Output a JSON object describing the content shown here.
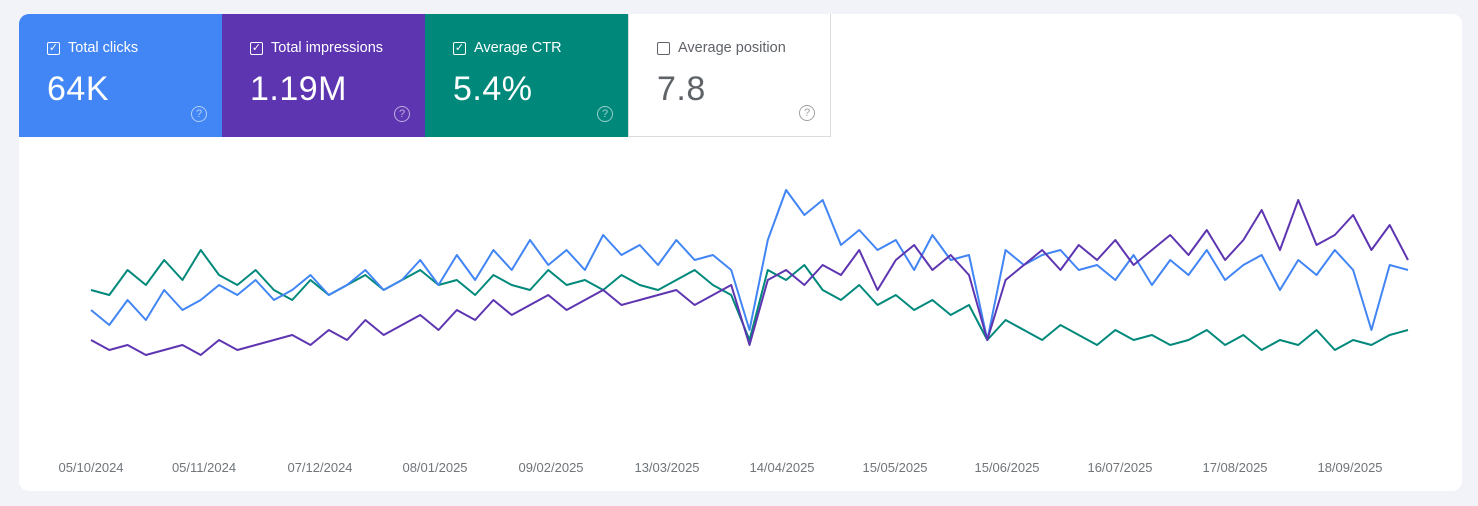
{
  "metrics": [
    {
      "label": "Total clicks",
      "value": "64K",
      "checked": true,
      "color": "#4285f4"
    },
    {
      "label": "Total impressions",
      "value": "1.19M",
      "checked": true,
      "color": "#5e35b1"
    },
    {
      "label": "Average CTR",
      "value": "5.4%",
      "checked": true,
      "color": "#00897b"
    },
    {
      "label": "Average position",
      "value": "7.8",
      "checked": false,
      "color": "#ffffff"
    }
  ],
  "chart_data": {
    "type": "line",
    "title": "",
    "xlabel": "",
    "ylabel": "",
    "x_start": "05/10/2024",
    "x_end": "03/10/2025",
    "x_ticks": [
      "05/10/2024",
      "05/11/2024",
      "07/12/2024",
      "08/01/2025",
      "09/02/2025",
      "13/03/2025",
      "14/04/2025",
      "15/05/2025",
      "15/06/2025",
      "16/07/2025",
      "17/08/2025",
      "18/09/2025"
    ],
    "ylim": [
      0,
      260
    ],
    "grid": false,
    "series": [
      {
        "name": "Total clicks",
        "color": "#4285f4",
        "values": [
          120,
          105,
          130,
          110,
          140,
          120,
          130,
          145,
          135,
          150,
          130,
          140,
          155,
          135,
          145,
          160,
          140,
          150,
          170,
          145,
          175,
          150,
          180,
          160,
          190,
          165,
          180,
          160,
          195,
          175,
          185,
          165,
          190,
          170,
          175,
          160,
          100,
          190,
          240,
          215,
          230,
          185,
          200,
          180,
          190,
          160,
          195,
          170,
          175,
          90,
          180,
          165,
          175,
          180,
          160,
          165,
          150,
          175,
          145,
          170,
          155,
          180,
          150,
          165,
          175,
          140,
          170,
          155,
          180,
          160,
          100,
          165,
          160
        ]
      },
      {
        "name": "Total impressions",
        "color": "#5e35b1",
        "values": [
          90,
          80,
          85,
          75,
          80,
          85,
          75,
          90,
          80,
          85,
          90,
          95,
          85,
          100,
          90,
          110,
          95,
          105,
          115,
          100,
          120,
          110,
          130,
          115,
          125,
          135,
          120,
          130,
          140,
          125,
          130,
          135,
          140,
          125,
          135,
          145,
          85,
          150,
          160,
          145,
          165,
          155,
          180,
          140,
          170,
          185,
          160,
          175,
          155,
          90,
          150,
          165,
          180,
          160,
          185,
          170,
          190,
          165,
          180,
          195,
          175,
          200,
          170,
          190,
          220,
          180,
          230,
          185,
          195,
          215,
          180,
          205,
          170
        ]
      },
      {
        "name": "Average CTR",
        "color": "#00897b",
        "values": [
          140,
          135,
          160,
          145,
          170,
          150,
          180,
          155,
          145,
          160,
          140,
          130,
          150,
          135,
          145,
          155,
          140,
          150,
          160,
          145,
          150,
          135,
          155,
          145,
          140,
          160,
          145,
          150,
          140,
          155,
          145,
          140,
          150,
          160,
          145,
          135,
          90,
          160,
          150,
          165,
          140,
          130,
          145,
          125,
          135,
          120,
          130,
          115,
          125,
          90,
          110,
          100,
          90,
          105,
          95,
          85,
          100,
          90,
          95,
          85,
          90,
          100,
          85,
          95,
          80,
          90,
          85,
          100,
          80,
          90,
          85,
          95,
          100
        ]
      }
    ]
  }
}
